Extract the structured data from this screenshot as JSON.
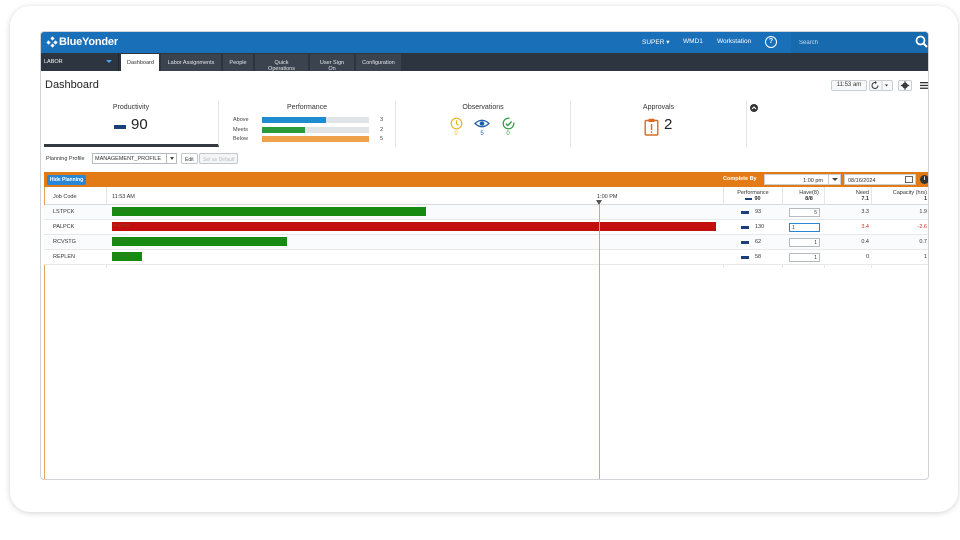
{
  "app": {
    "logo": "BlueYonder"
  },
  "top_menu": {
    "user": "SUPER ▾",
    "site": "WMD1",
    "workstation": "Workstation",
    "help": "?"
  },
  "search": {
    "placeholder": "Search"
  },
  "nav": {
    "module": "LABOR",
    "tabs": [
      "Dashboard",
      "Labor Assignments",
      "People",
      "Quick Operations",
      "User Sign On",
      "Configuration"
    ],
    "active_tab": "Dashboard"
  },
  "header": {
    "title": "Dashboard",
    "time": "11:53 am"
  },
  "kpis": {
    "productivity": {
      "title": "Productivity",
      "value": "90"
    },
    "performance": {
      "title": "Performance",
      "rows": [
        {
          "label": "Above",
          "count": "3",
          "fill": 0.6,
          "color": "#1f8ccf"
        },
        {
          "label": "Meets",
          "count": "2",
          "fill": 0.4,
          "color": "#2a9a3a"
        },
        {
          "label": "Below",
          "count": "5",
          "fill": 1.0,
          "color": "#f0a14c"
        }
      ]
    },
    "observations": {
      "title": "Observations",
      "items": [
        {
          "name": "clock",
          "value": "0",
          "color": "#e6b520"
        },
        {
          "name": "eye",
          "value": "5",
          "color": "#1b5fa8"
        },
        {
          "name": "check",
          "value": "0",
          "color": "#2a9a3a"
        }
      ]
    },
    "approvals": {
      "title": "Approvals",
      "value": "2"
    }
  },
  "planning": {
    "profile_label": "Planning Profile",
    "profile_value": "MANAGEMENT_PROFILE",
    "edit_label": "Edit",
    "default_label": "Set as Default",
    "hide_label": "Hide Planning",
    "complete_by_label": "Complete By",
    "complete_time": "1:00 pm",
    "complete_date": "08/16/2024"
  },
  "grid": {
    "headers": {
      "job_code": "Job Code",
      "start_time": "11:53 AM",
      "mid_time": "1:00 PM",
      "performance": "Performance",
      "performance_total": "90",
      "have": "Have(8)",
      "have_total": "8/8",
      "need": "Need",
      "need_total": "7.1",
      "capacity": "Capacity (hrs)",
      "capacity_total": "1"
    },
    "rows": [
      {
        "code": "LSTPCK",
        "bar_label": "LSTPCK",
        "bar_fill": 0.52,
        "bar_color": "#178a12",
        "performance": "93",
        "have": "5",
        "need": "3.3",
        "capacity": "1.9",
        "need_neg": false,
        "cap_neg": false
      },
      {
        "code": "PALPCK",
        "bar_label": "PALPCK",
        "bar_fill": 1.0,
        "bar_color": "#c40e0e",
        "performance": "130",
        "have": "1",
        "need": "3.4",
        "capacity": "-2.6",
        "need_neg": true,
        "cap_neg": true
      },
      {
        "code": "RCVSTG",
        "bar_label": "RCVSTG",
        "bar_fill": 0.29,
        "bar_color": "#178a12",
        "performance": "62",
        "have": "1",
        "need": "0.4",
        "capacity": "0.7",
        "need_neg": false,
        "cap_neg": false
      },
      {
        "code": "REPLEN",
        "bar_label": "REPLEN",
        "bar_fill": 0.05,
        "bar_color": "#178a12",
        "performance": "58",
        "have": "1",
        "need": "0",
        "capacity": "1",
        "need_neg": false,
        "cap_neg": false
      }
    ]
  }
}
